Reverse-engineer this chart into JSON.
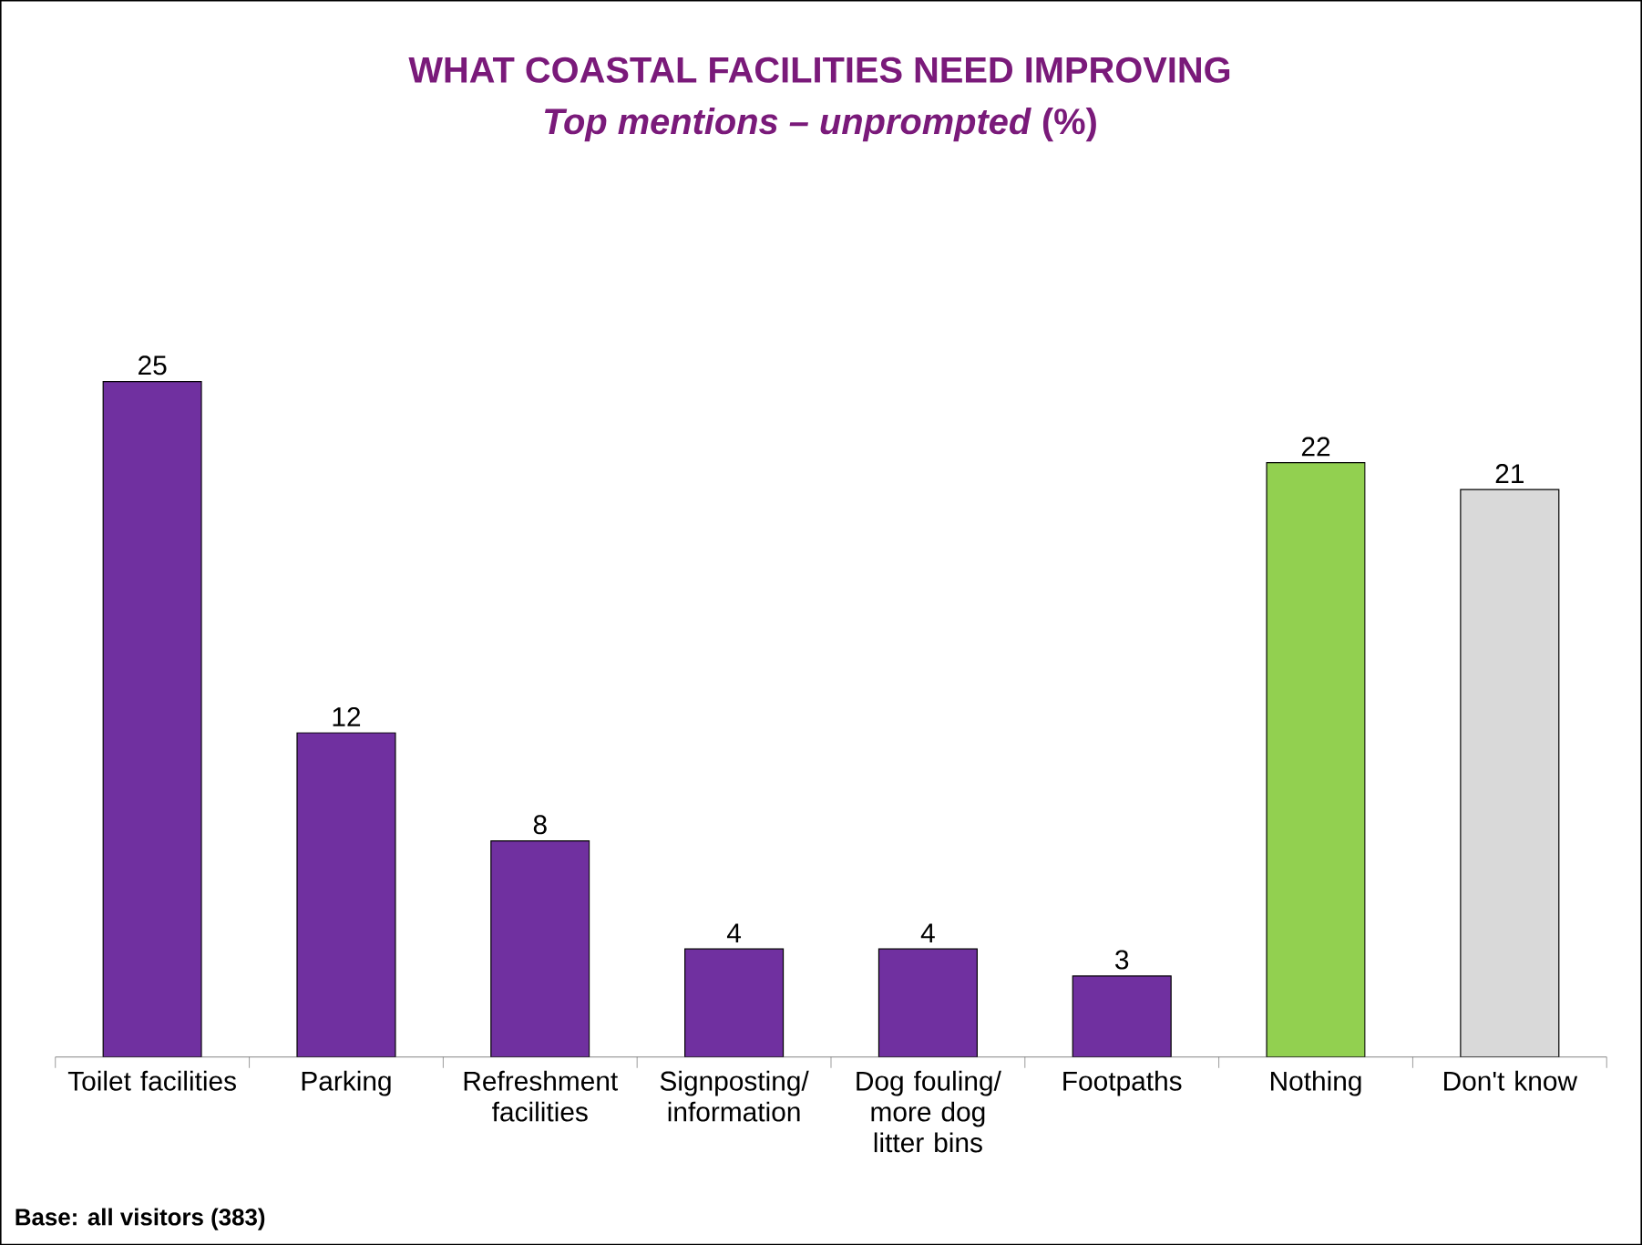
{
  "chart_data": {
    "type": "bar",
    "title": "WHAT COASTAL FACILITIES NEED IMPROVING",
    "subtitle": "*Top mentions – unprompted* (%)",
    "categories": [
      "Toilet facilities",
      "Parking",
      "Refreshment facilities",
      "Signposting/ information",
      "Dog fouling/ more dog litter bins",
      "Footpaths",
      "Nothing",
      "Don't know"
    ],
    "values": [
      25,
      12,
      8,
      4,
      4,
      3,
      22,
      21
    ],
    "colors": [
      "#7030a0",
      "#7030a0",
      "#7030a0",
      "#7030a0",
      "#7030a0",
      "#7030a0",
      "#92d050",
      "#d9d9d9"
    ],
    "data_labels": true,
    "annotations": [
      "Base: all visitors (383)"
    ]
  }
}
